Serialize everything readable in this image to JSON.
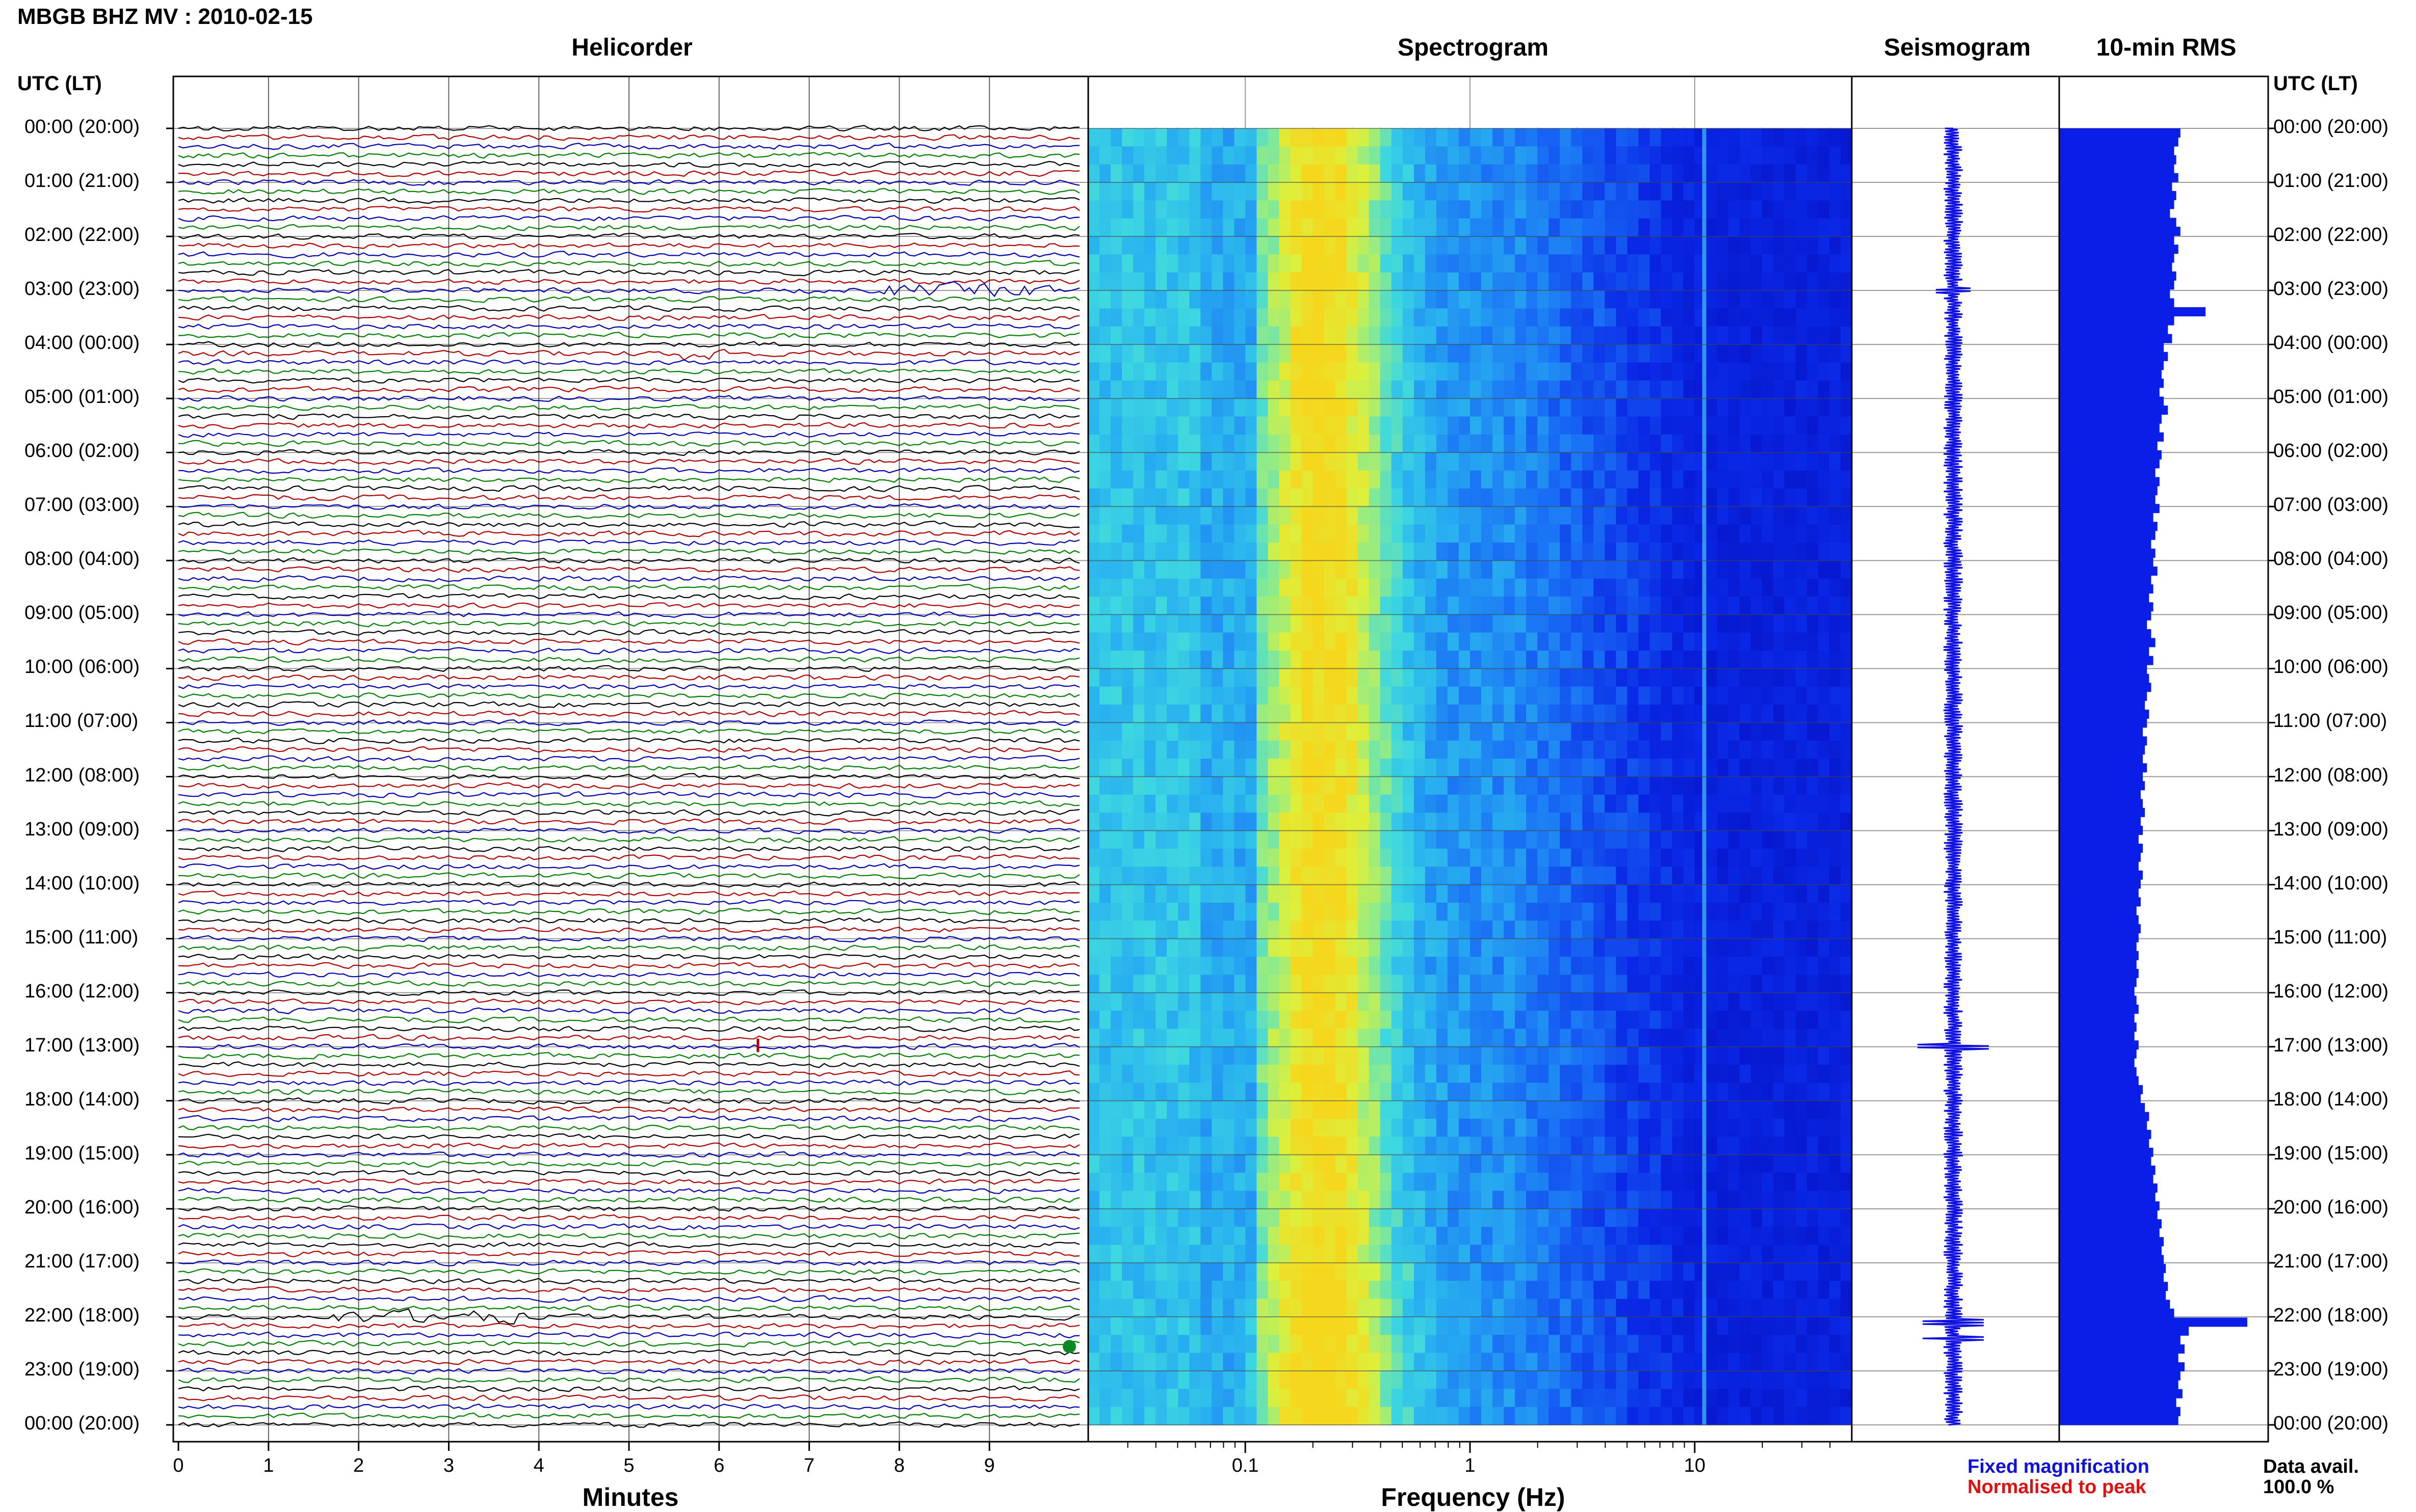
{
  "header": {
    "station_title": "MBGB BHZ MV : 2010-02-15"
  },
  "panels": {
    "helicorder": "Helicorder",
    "spectrogram": "Spectrogram",
    "seismogram": "Seismogram",
    "rms": "10-min RMS"
  },
  "axes": {
    "left_header": "UTC (LT)",
    "right_header": "UTC (LT)",
    "hour_labels": [
      "00:00 (20:00)",
      "01:00 (21:00)",
      "02:00 (22:00)",
      "03:00 (23:00)",
      "04:00 (00:00)",
      "05:00 (01:00)",
      "06:00 (02:00)",
      "07:00 (03:00)",
      "08:00 (04:00)",
      "09:00 (05:00)",
      "10:00 (06:00)",
      "11:00 (07:00)",
      "12:00 (08:00)",
      "13:00 (09:00)",
      "14:00 (10:00)",
      "15:00 (11:00)",
      "16:00 (12:00)",
      "17:00 (13:00)",
      "18:00 (14:00)",
      "19:00 (15:00)",
      "20:00 (16:00)",
      "21:00 (17:00)",
      "22:00 (18:00)",
      "23:00 (19:00)",
      "00:00 (20:00)"
    ],
    "minutes_label": "Minutes",
    "minutes_ticks": [
      "0",
      "1",
      "2",
      "3",
      "4",
      "5",
      "6",
      "7",
      "8",
      "9"
    ],
    "frequency_label": "Frequency (Hz)",
    "frequency_ticks": [
      "0.1",
      "1",
      "10"
    ]
  },
  "legend": {
    "fixed": "Fixed magnification",
    "normalised": "Normalised to peak",
    "fixed_color": "#1010e0",
    "normalised_color": "#e01010"
  },
  "availability": {
    "label": "Data avail.",
    "value": "100.0 %"
  },
  "colors": {
    "trace_cycle": [
      "#000000",
      "#b00000",
      "#0000b0",
      "#008000"
    ],
    "bar": "#0a1ee8"
  },
  "chart_data": [
    {
      "type": "line",
      "panel": "Helicorder",
      "xlabel": "Minutes",
      "x_range": [
        0,
        10
      ],
      "rows": 145,
      "row_interval_minutes": 10,
      "notable_events_hour": [
        3.0,
        4.3,
        17.0,
        22.0,
        22.4
      ]
    },
    {
      "type": "heatmap",
      "panel": "Spectrogram",
      "xlabel": "Frequency (Hz)",
      "x_scale": "log",
      "x_range": [
        0.02,
        50
      ],
      "peak_band_hz": [
        0.12,
        0.5
      ],
      "narrow_line_hz": 11
    },
    {
      "type": "line",
      "panel": "Seismogram",
      "spikes_hour": [
        3.0,
        17.0,
        22.1,
        22.4
      ]
    },
    {
      "type": "bar",
      "panel": "10-min RMS",
      "orientation": "horizontal",
      "values": [
        0.58,
        0.57,
        0.55,
        0.56,
        0.55,
        0.57,
        0.54,
        0.56,
        0.55,
        0.53,
        0.56,
        0.58,
        0.55,
        0.57,
        0.55,
        0.54,
        0.56,
        0.55,
        0.53,
        0.55,
        0.7,
        0.55,
        0.52,
        0.54,
        0.5,
        0.52,
        0.5,
        0.49,
        0.5,
        0.48,
        0.5,
        0.52,
        0.49,
        0.48,
        0.5,
        0.47,
        0.49,
        0.48,
        0.46,
        0.48,
        0.47,
        0.46,
        0.48,
        0.45,
        0.47,
        0.46,
        0.44,
        0.46,
        0.45,
        0.47,
        0.44,
        0.45,
        0.43,
        0.45,
        0.44,
        0.42,
        0.44,
        0.46,
        0.43,
        0.45,
        0.42,
        0.43,
        0.44,
        0.42,
        0.41,
        0.43,
        0.42,
        0.4,
        0.42,
        0.41,
        0.4,
        0.42,
        0.4,
        0.41,
        0.39,
        0.4,
        0.41,
        0.39,
        0.4,
        0.38,
        0.4,
        0.39,
        0.38,
        0.4,
        0.39,
        0.38,
        0.39,
        0.37,
        0.38,
        0.39,
        0.38,
        0.37,
        0.38,
        0.37,
        0.38,
        0.37,
        0.36,
        0.37,
        0.38,
        0.36,
        0.37,
        0.36,
        0.38,
        0.37,
        0.36,
        0.37,
        0.38,
        0.4,
        0.39,
        0.41,
        0.43,
        0.42,
        0.44,
        0.43,
        0.45,
        0.44,
        0.46,
        0.45,
        0.47,
        0.46,
        0.48,
        0.47,
        0.49,
        0.48,
        0.5,
        0.49,
        0.5,
        0.51,
        0.5,
        0.52,
        0.51,
        0.53,
        0.55,
        0.9,
        0.62,
        0.58,
        0.6,
        0.57,
        0.6,
        0.58,
        0.57,
        0.59,
        0.56,
        0.58,
        0.57
      ]
    }
  ]
}
